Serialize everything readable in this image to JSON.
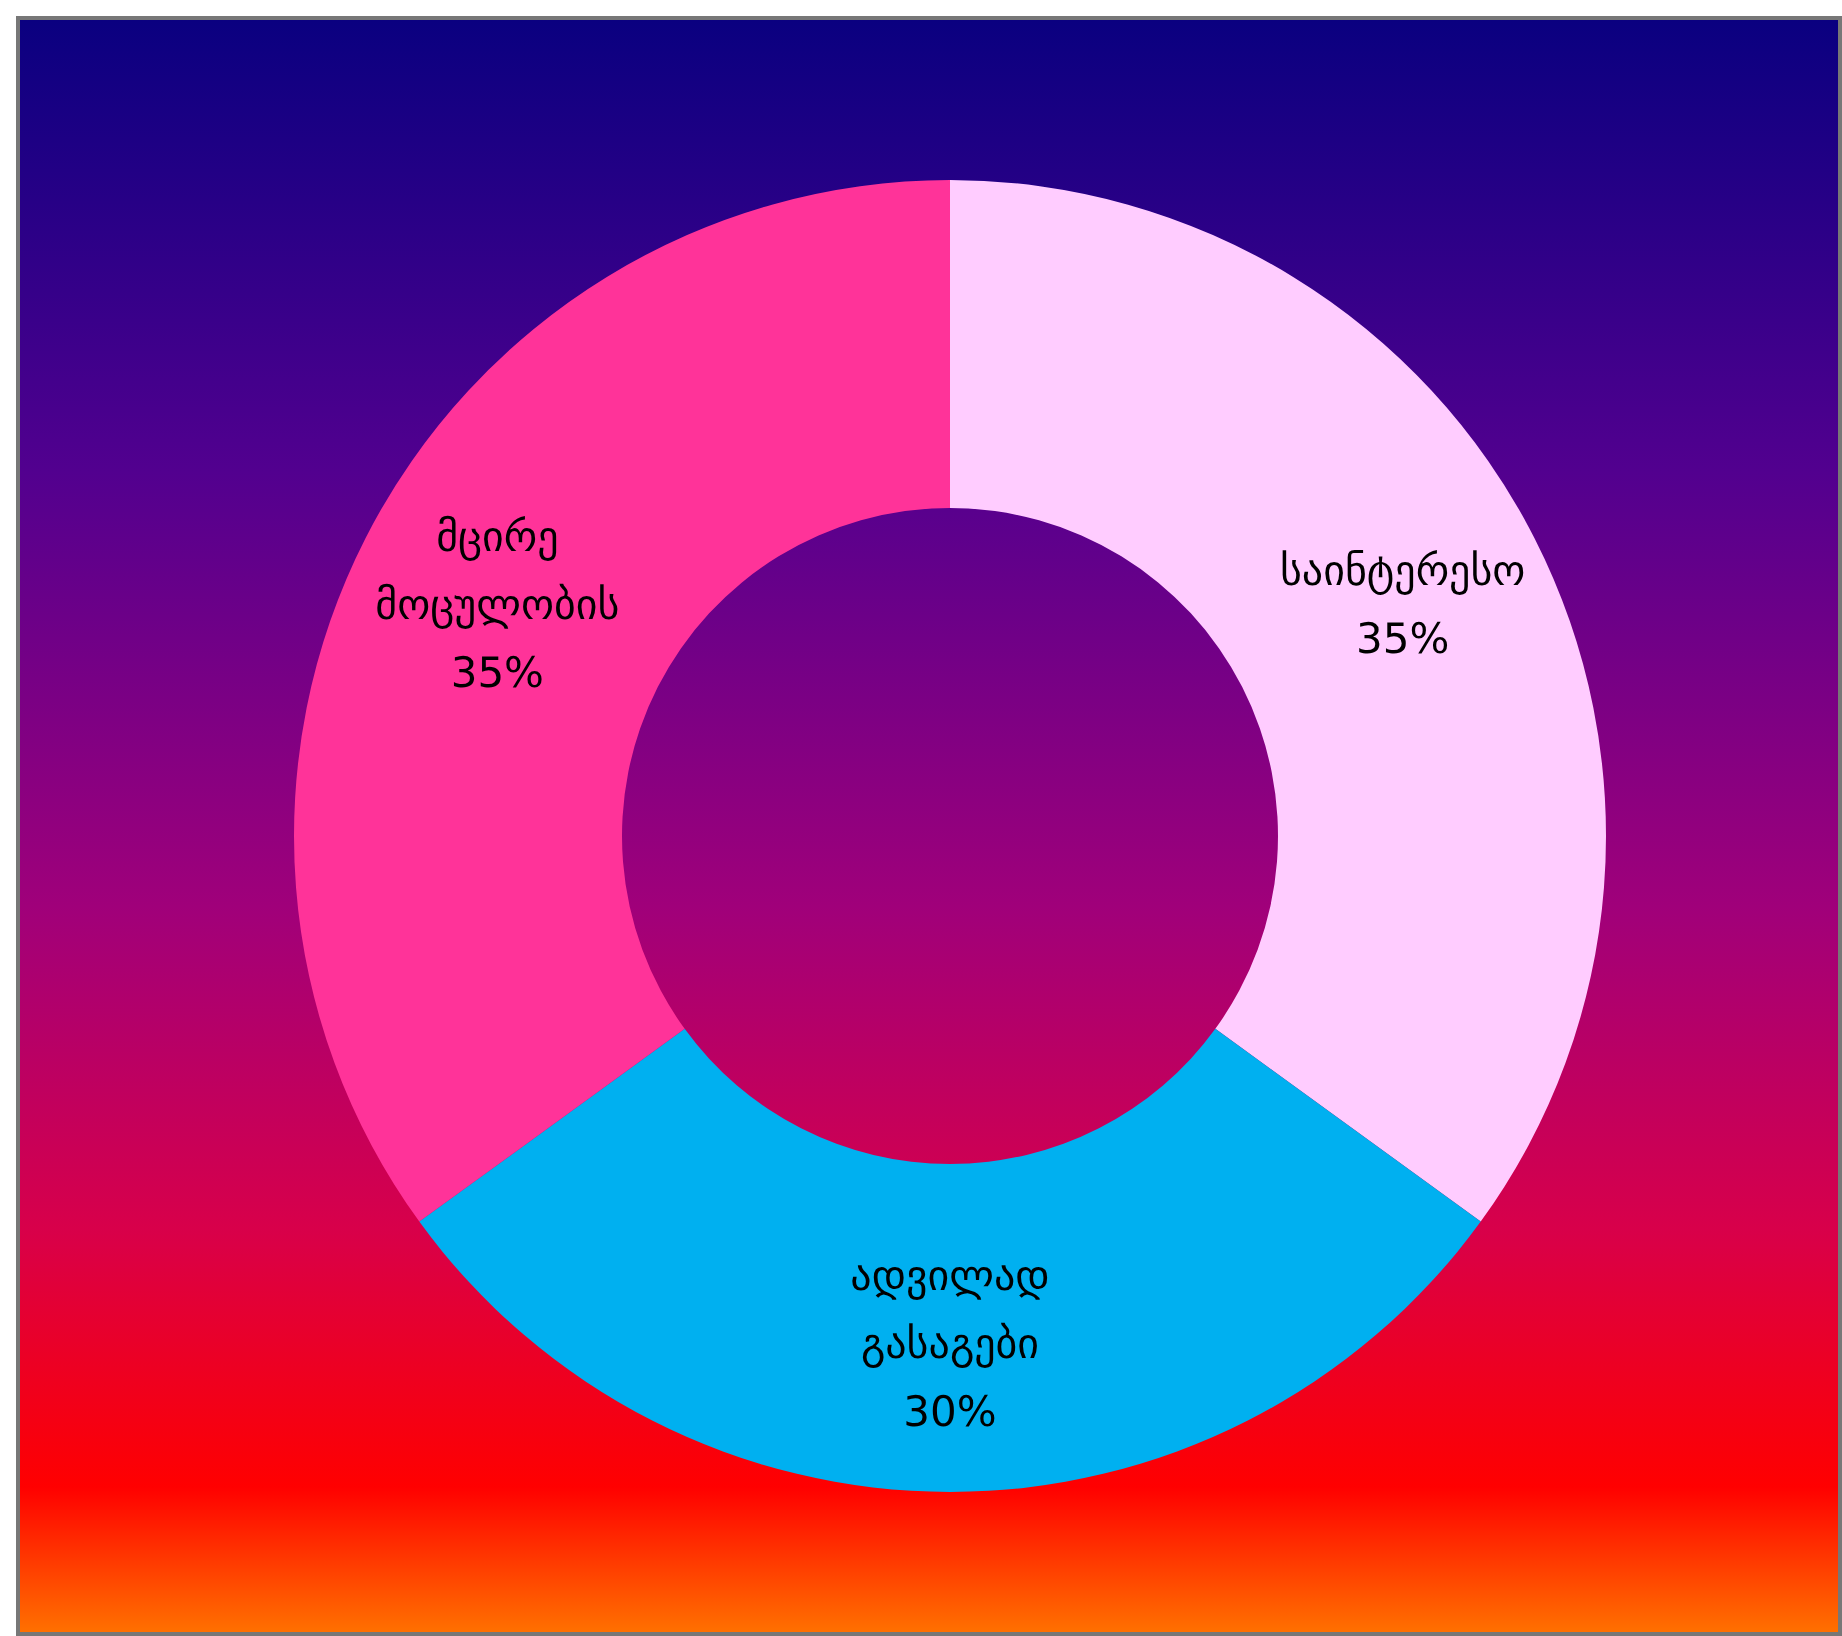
{
  "chart_data": {
    "type": "donut",
    "categories": [
      "საინტერესო",
      "ადვილად გასაგები",
      "მცირე მოცულობის"
    ],
    "values": [
      35,
      30,
      35
    ],
    "colors": [
      "#ffccff",
      "#00b0f0",
      "#ff3399"
    ],
    "value_labels": [
      "35%",
      "30%",
      "35%"
    ]
  }
}
